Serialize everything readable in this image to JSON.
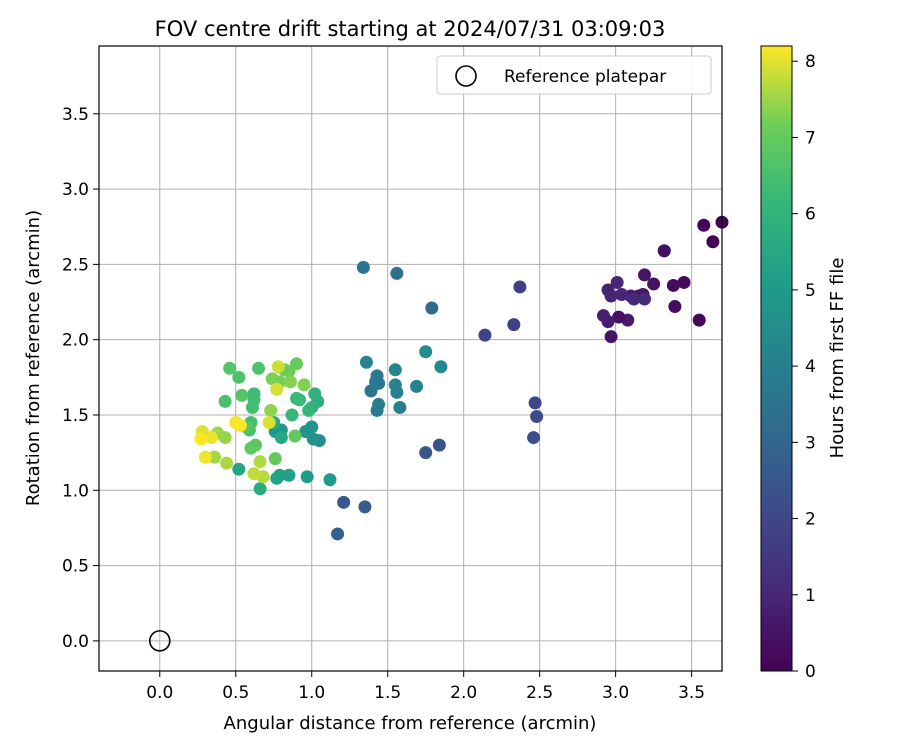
{
  "chart_data": {
    "type": "scatter",
    "title": "FOV centre drift starting at 2024/07/31 03:09:03",
    "xlabel": "Angular distance from reference (arcmin)",
    "ylabel": "Rotation from reference (arcmin)",
    "xlim": [
      -0.4,
      3.7
    ],
    "ylim": [
      -0.2,
      3.95
    ],
    "xticks": [
      "0.0",
      "0.5",
      "1.0",
      "1.5",
      "2.0",
      "2.5",
      "3.0",
      "3.5"
    ],
    "yticks": [
      "0.0",
      "0.5",
      "1.0",
      "1.5",
      "2.0",
      "2.5",
      "3.0",
      "3.5"
    ],
    "grid": true,
    "legend": {
      "placement": "top-right",
      "entries": [
        "Reference platepar"
      ]
    },
    "colorbar": {
      "label": "Hours from first FF file",
      "range": [
        0,
        8.2
      ],
      "ticks": [
        "0",
        "1",
        "2",
        "3",
        "4",
        "5",
        "6",
        "7",
        "8"
      ],
      "colormap": "viridis"
    },
    "reference_point": {
      "x": 0.0,
      "y": 0.0
    },
    "points": [
      {
        "x": 3.7,
        "y": 2.78,
        "c": 0.0
      },
      {
        "x": 3.64,
        "y": 2.65,
        "c": 0.05
      },
      {
        "x": 3.58,
        "y": 2.76,
        "c": 0.1
      },
      {
        "x": 3.55,
        "y": 2.13,
        "c": 0.15
      },
      {
        "x": 3.45,
        "y": 2.38,
        "c": 0.2
      },
      {
        "x": 3.38,
        "y": 2.36,
        "c": 0.25
      },
      {
        "x": 3.39,
        "y": 2.22,
        "c": 0.3
      },
      {
        "x": 3.32,
        "y": 2.59,
        "c": 0.35
      },
      {
        "x": 3.32,
        "y": 2.59,
        "c": 0.38
      },
      {
        "x": 3.25,
        "y": 2.37,
        "c": 0.45
      },
      {
        "x": 3.19,
        "y": 2.43,
        "c": 0.5
      },
      {
        "x": 3.18,
        "y": 2.3,
        "c": 0.55
      },
      {
        "x": 3.15,
        "y": 2.29,
        "c": 0.6
      },
      {
        "x": 3.1,
        "y": 2.29,
        "c": 0.65
      },
      {
        "x": 3.08,
        "y": 2.13,
        "c": 0.7
      },
      {
        "x": 3.02,
        "y": 2.15,
        "c": 0.4
      },
      {
        "x": 2.97,
        "y": 2.02,
        "c": 0.5
      },
      {
        "x": 2.95,
        "y": 2.12,
        "c": 0.75
      },
      {
        "x": 2.92,
        "y": 2.16,
        "c": 0.8
      },
      {
        "x": 2.95,
        "y": 2.33,
        "c": 0.85
      },
      {
        "x": 2.97,
        "y": 2.29,
        "c": 0.9
      },
      {
        "x": 3.01,
        "y": 2.38,
        "c": 0.95
      },
      {
        "x": 3.04,
        "y": 2.3,
        "c": 1.0
      },
      {
        "x": 3.12,
        "y": 2.27,
        "c": 1.05
      },
      {
        "x": 3.19,
        "y": 2.27,
        "c": 1.1
      },
      {
        "x": 2.37,
        "y": 2.35,
        "c": 1.7
      },
      {
        "x": 2.33,
        "y": 2.1,
        "c": 1.8
      },
      {
        "x": 2.14,
        "y": 2.03,
        "c": 1.9
      },
      {
        "x": 2.47,
        "y": 1.58,
        "c": 2.0
      },
      {
        "x": 2.48,
        "y": 1.49,
        "c": 2.1
      },
      {
        "x": 2.46,
        "y": 1.35,
        "c": 2.2
      },
      {
        "x": 1.84,
        "y": 1.3,
        "c": 2.4
      },
      {
        "x": 1.75,
        "y": 1.25,
        "c": 2.5
      },
      {
        "x": 1.21,
        "y": 0.92,
        "c": 2.6
      },
      {
        "x": 1.35,
        "y": 0.89,
        "c": 2.7
      },
      {
        "x": 1.17,
        "y": 0.71,
        "c": 2.8
      },
      {
        "x": 1.79,
        "y": 2.21,
        "c": 3.2
      },
      {
        "x": 1.56,
        "y": 2.44,
        "c": 3.4
      },
      {
        "x": 1.34,
        "y": 2.48,
        "c": 3.6
      },
      {
        "x": 1.39,
        "y": 1.66,
        "c": 3.6
      },
      {
        "x": 1.43,
        "y": 1.76,
        "c": 3.7
      },
      {
        "x": 1.42,
        "y": 1.72,
        "c": 3.75
      },
      {
        "x": 1.44,
        "y": 1.71,
        "c": 3.8
      },
      {
        "x": 1.43,
        "y": 1.53,
        "c": 3.85
      },
      {
        "x": 1.44,
        "y": 1.57,
        "c": 3.9
      },
      {
        "x": 1.56,
        "y": 1.65,
        "c": 3.95
      },
      {
        "x": 1.58,
        "y": 1.55,
        "c": 4.0
      },
      {
        "x": 1.55,
        "y": 1.7,
        "c": 4.05
      },
      {
        "x": 1.69,
        "y": 1.69,
        "c": 4.1
      },
      {
        "x": 1.36,
        "y": 1.85,
        "c": 4.15
      },
      {
        "x": 1.55,
        "y": 1.8,
        "c": 4.2
      },
      {
        "x": 1.85,
        "y": 1.82,
        "c": 4.35
      },
      {
        "x": 1.75,
        "y": 1.92,
        "c": 4.5
      },
      {
        "x": 1.05,
        "y": 1.33,
        "c": 4.6
      },
      {
        "x": 1.01,
        "y": 1.34,
        "c": 4.7
      },
      {
        "x": 1.0,
        "y": 1.42,
        "c": 4.75
      },
      {
        "x": 0.96,
        "y": 1.39,
        "c": 4.8
      },
      {
        "x": 0.8,
        "y": 1.4,
        "c": 4.9
      },
      {
        "x": 0.76,
        "y": 1.39,
        "c": 4.95
      },
      {
        "x": 1.12,
        "y": 1.07,
        "c": 5.0
      },
      {
        "x": 0.97,
        "y": 1.09,
        "c": 5.1
      },
      {
        "x": 0.85,
        "y": 1.1,
        "c": 5.2
      },
      {
        "x": 0.79,
        "y": 1.1,
        "c": 5.25
      },
      {
        "x": 0.77,
        "y": 1.08,
        "c": 5.3
      },
      {
        "x": 0.52,
        "y": 1.14,
        "c": 5.4
      },
      {
        "x": 0.8,
        "y": 1.35,
        "c": 5.5
      },
      {
        "x": 0.75,
        "y": 1.45,
        "c": 5.6
      },
      {
        "x": 0.66,
        "y": 1.01,
        "c": 5.7
      },
      {
        "x": 1.04,
        "y": 1.59,
        "c": 5.8
      },
      {
        "x": 1.02,
        "y": 1.64,
        "c": 5.9
      },
      {
        "x": 1.0,
        "y": 1.55,
        "c": 6.0
      },
      {
        "x": 0.98,
        "y": 1.53,
        "c": 6.1
      },
      {
        "x": 0.87,
        "y": 1.5,
        "c": 6.15
      },
      {
        "x": 0.9,
        "y": 1.61,
        "c": 6.2
      },
      {
        "x": 0.92,
        "y": 1.6,
        "c": 6.25
      },
      {
        "x": 0.62,
        "y": 1.64,
        "c": 6.3
      },
      {
        "x": 0.62,
        "y": 1.6,
        "c": 6.35
      },
      {
        "x": 0.61,
        "y": 1.55,
        "c": 6.4
      },
      {
        "x": 0.6,
        "y": 1.45,
        "c": 6.45
      },
      {
        "x": 0.59,
        "y": 1.4,
        "c": 6.5
      },
      {
        "x": 0.43,
        "y": 1.59,
        "c": 6.55
      },
      {
        "x": 0.52,
        "y": 1.75,
        "c": 6.6
      },
      {
        "x": 0.65,
        "y": 1.81,
        "c": 6.65
      },
      {
        "x": 0.46,
        "y": 1.81,
        "c": 6.7
      },
      {
        "x": 0.54,
        "y": 1.63,
        "c": 6.75
      },
      {
        "x": 0.57,
        "y": 1.42,
        "c": 6.8
      },
      {
        "x": 0.63,
        "y": 1.3,
        "c": 6.85
      },
      {
        "x": 0.6,
        "y": 1.28,
        "c": 6.9
      },
      {
        "x": 0.89,
        "y": 1.36,
        "c": 6.95
      },
      {
        "x": 0.76,
        "y": 1.21,
        "c": 7.0
      },
      {
        "x": 0.9,
        "y": 1.84,
        "c": 7.05
      },
      {
        "x": 0.85,
        "y": 1.79,
        "c": 7.1
      },
      {
        "x": 0.82,
        "y": 1.8,
        "c": 7.15
      },
      {
        "x": 0.79,
        "y": 1.72,
        "c": 7.2
      },
      {
        "x": 0.74,
        "y": 1.74,
        "c": 7.25
      },
      {
        "x": 0.95,
        "y": 1.7,
        "c": 7.3
      },
      {
        "x": 0.86,
        "y": 1.72,
        "c": 7.35
      },
      {
        "x": 0.73,
        "y": 1.53,
        "c": 7.4
      },
      {
        "x": 0.43,
        "y": 1.35,
        "c": 7.45
      },
      {
        "x": 0.38,
        "y": 1.38,
        "c": 7.5
      },
      {
        "x": 0.36,
        "y": 1.22,
        "c": 7.55
      },
      {
        "x": 0.44,
        "y": 1.18,
        "c": 7.6
      },
      {
        "x": 0.66,
        "y": 1.19,
        "c": 7.65
      },
      {
        "x": 0.68,
        "y": 1.09,
        "c": 7.7
      },
      {
        "x": 0.62,
        "y": 1.11,
        "c": 7.75
      },
      {
        "x": 0.78,
        "y": 1.82,
        "c": 7.85
      },
      {
        "x": 0.77,
        "y": 1.67,
        "c": 7.9
      },
      {
        "x": 0.72,
        "y": 1.45,
        "c": 7.95
      },
      {
        "x": 0.28,
        "y": 1.39,
        "c": 8.0
      },
      {
        "x": 0.34,
        "y": 1.35,
        "c": 8.05
      },
      {
        "x": 0.3,
        "y": 1.22,
        "c": 8.1
      },
      {
        "x": 0.5,
        "y": 1.45,
        "c": 8.15
      },
      {
        "x": 0.53,
        "y": 1.43,
        "c": 8.18
      },
      {
        "x": 0.27,
        "y": 1.34,
        "c": 8.2
      }
    ]
  }
}
